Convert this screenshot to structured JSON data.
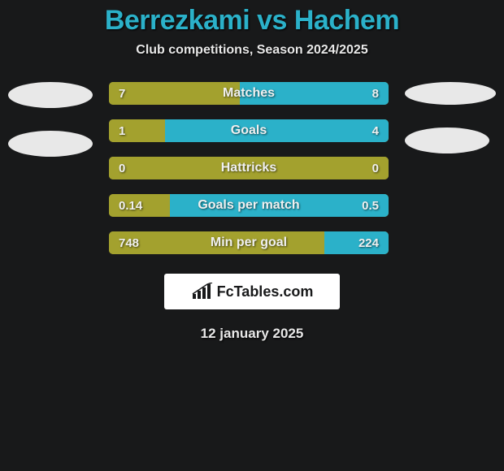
{
  "header": {
    "title": "Berrezkami vs Hachem",
    "title_color": "#2bb1c9",
    "title_fontsize": 34,
    "subtitle": "Club competitions, Season 2024/2025",
    "subtitle_color": "#e8e8e8",
    "subtitle_fontsize": 16
  },
  "background_color": "#18191a",
  "avatars": {
    "left": {
      "count": 2,
      "fill": "#e8e8e8",
      "shape": "ellipse"
    },
    "right": {
      "count": 2,
      "fill": "#e8e8e8",
      "shape": "ellipse"
    }
  },
  "bar_style": {
    "height": 28,
    "border_radius": 5,
    "gap": 18,
    "left_color": "#a3a12e",
    "right_color": "#2bb1c9",
    "label_color": "#f0f0f0",
    "label_fontsize": 16,
    "value_fontsize": 15
  },
  "stats": [
    {
      "label": "Matches",
      "left_value": "7",
      "right_value": "8",
      "left_num": 7,
      "right_num": 8
    },
    {
      "label": "Goals",
      "left_value": "1",
      "right_value": "4",
      "left_num": 1,
      "right_num": 4
    },
    {
      "label": "Hattricks",
      "left_value": "0",
      "right_value": "0",
      "left_num": 0,
      "right_num": 0
    },
    {
      "label": "Goals per match",
      "left_value": "0.14",
      "right_value": "0.5",
      "left_num": 0.14,
      "right_num": 0.5
    },
    {
      "label": "Min per goal",
      "left_value": "748",
      "right_value": "224",
      "left_num": 748,
      "right_num": 224
    }
  ],
  "logo": {
    "text": "FcTables.com",
    "box_bg": "#ffffff",
    "text_color": "#18191a",
    "icon_color": "#18191a"
  },
  "footer": {
    "date": "12 january 2025",
    "date_color": "#e8e8e8",
    "date_fontsize": 17
  }
}
